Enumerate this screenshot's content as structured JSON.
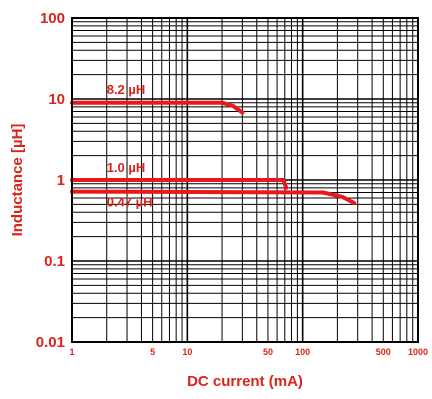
{
  "chart_data": {
    "type": "line",
    "title": "",
    "xlabel": "DC current (mA)",
    "ylabel": "Inductance [µH]",
    "xscale": "log",
    "yscale": "log",
    "xlim": [
      1,
      1000
    ],
    "ylim": [
      0.01,
      100
    ],
    "grid": true,
    "legend": "none",
    "x_tick_labels": [
      "1",
      "5",
      "10",
      "50",
      "100",
      "500",
      "1000"
    ],
    "y_tick_labels": [
      "0.01",
      "0.1",
      "1",
      "10",
      "100"
    ],
    "series": [
      {
        "name": "8.2 µH",
        "label_at": [
          2,
          11.5
        ],
        "points": [
          [
            1,
            9.0
          ],
          [
            20,
            9.0
          ],
          [
            25,
            8.2
          ],
          [
            30,
            6.8
          ]
        ]
      },
      {
        "name": "1.0 µH",
        "label_at": [
          2,
          1.25
        ],
        "points": [
          [
            1,
            1.0
          ],
          [
            68,
            1.0
          ],
          [
            72,
            0.8
          ]
        ]
      },
      {
        "name": "0.47 µH",
        "label_at": [
          2,
          0.47
        ],
        "points": [
          [
            1,
            0.72
          ],
          [
            150,
            0.7
          ],
          [
            220,
            0.62
          ],
          [
            280,
            0.52
          ]
        ]
      }
    ],
    "colors": {
      "series": "#e8181c",
      "text": "#d9241c",
      "grid": "#000000"
    }
  }
}
